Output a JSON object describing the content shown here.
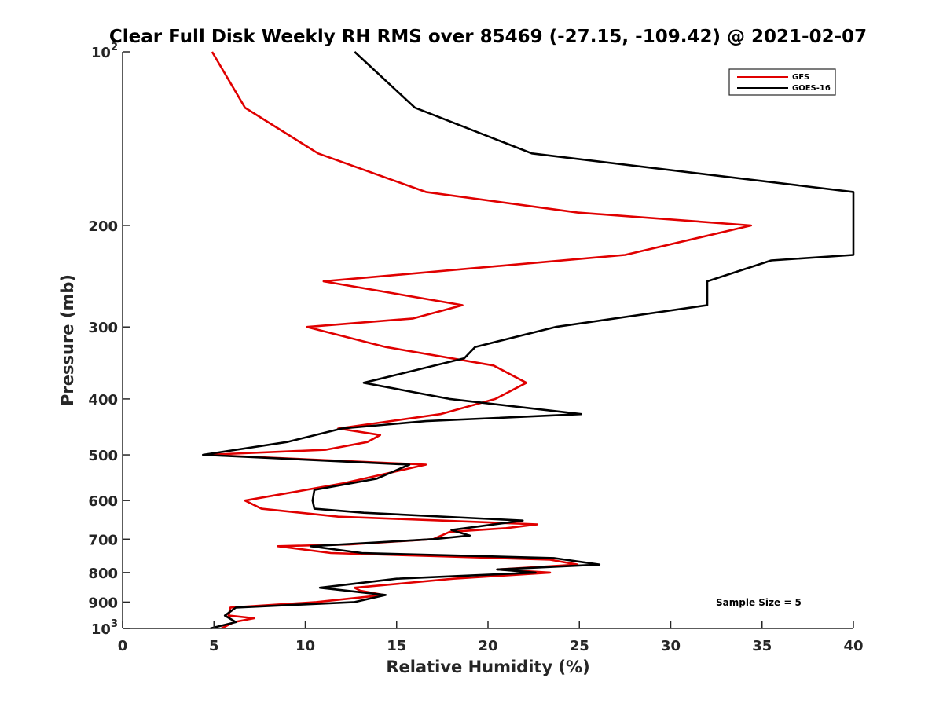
{
  "chart_data": {
    "type": "line",
    "title": "Clear Full Disk Weekly RH RMS over 85469 (-27.15, -109.42) @ 2021-02-07",
    "xlabel": "Relative Humidity (%)",
    "ylabel": "Pressure (mb)",
    "xlim": [
      0,
      40
    ],
    "ylim": [
      100,
      1000
    ],
    "y_scale": "log",
    "y_reversed": true,
    "grid": false,
    "legend_position": "top-right",
    "x_ticks": [
      "0",
      "5",
      "10",
      "15",
      "20",
      "25",
      "30",
      "35",
      "40"
    ],
    "y_ticks": [
      {
        "value": 100,
        "base": "10",
        "exp": "2"
      },
      {
        "value": 200,
        "label": "200"
      },
      {
        "value": 300,
        "label": "300"
      },
      {
        "value": 400,
        "label": "400"
      },
      {
        "value": 500,
        "label": "500"
      },
      {
        "value": 600,
        "label": "600"
      },
      {
        "value": 700,
        "label": "700"
      },
      {
        "value": 800,
        "label": "800"
      },
      {
        "value": 900,
        "label": "900"
      },
      {
        "value": 1000,
        "base": "10",
        "exp": "3"
      }
    ],
    "annotation": "Sample Size = 5",
    "series": [
      {
        "name": "GFS",
        "color": "#e00000",
        "points": [
          [
            4.9,
            100
          ],
          [
            6.7,
            125
          ],
          [
            10.7,
            150
          ],
          [
            16.6,
            175
          ],
          [
            24.9,
            190
          ],
          [
            34.4,
            200
          ],
          [
            27.5,
            225
          ],
          [
            11.0,
            250
          ],
          [
            18.6,
            275
          ],
          [
            15.9,
            290
          ],
          [
            10.1,
            300
          ],
          [
            14.4,
            325
          ],
          [
            20.3,
            350
          ],
          [
            22.1,
            375
          ],
          [
            20.4,
            400
          ],
          [
            17.4,
            425
          ],
          [
            11.8,
            450
          ],
          [
            14.1,
            462
          ],
          [
            13.4,
            475
          ],
          [
            11.1,
            490
          ],
          [
            4.6,
            500
          ],
          [
            16.6,
            520
          ],
          [
            12.1,
            560
          ],
          [
            6.7,
            600
          ],
          [
            7.6,
            620
          ],
          [
            11.8,
            640
          ],
          [
            17.5,
            650
          ],
          [
            22.7,
            660
          ],
          [
            21.0,
            670
          ],
          [
            17.9,
            680
          ],
          [
            17.0,
            700
          ],
          [
            12.4,
            715
          ],
          [
            8.5,
            720
          ],
          [
            11.4,
            740
          ],
          [
            17.7,
            750
          ],
          [
            23.4,
            760
          ],
          [
            24.9,
            775
          ],
          [
            20.5,
            790
          ],
          [
            23.4,
            800
          ],
          [
            18.1,
            820
          ],
          [
            12.7,
            850
          ],
          [
            13.0,
            860
          ],
          [
            14.3,
            875
          ],
          [
            10.6,
            900
          ],
          [
            5.9,
            920
          ],
          [
            5.8,
            950
          ],
          [
            7.2,
            960
          ],
          [
            6.1,
            975
          ],
          [
            5.4,
            1000
          ]
        ]
      },
      {
        "name": "GOES-16",
        "color": "#000000",
        "points": [
          [
            12.7,
            100
          ],
          [
            16.0,
            125
          ],
          [
            22.4,
            150
          ],
          [
            40.0,
            175
          ],
          [
            40.0,
            225
          ],
          [
            35.5,
            230
          ],
          [
            32.0,
            250
          ],
          [
            32.0,
            275
          ],
          [
            23.7,
            300
          ],
          [
            19.3,
            325
          ],
          [
            18.7,
            340
          ],
          [
            13.2,
            375
          ],
          [
            17.9,
            400
          ],
          [
            25.1,
            425
          ],
          [
            16.6,
            437
          ],
          [
            12.0,
            450
          ],
          [
            9.0,
            475
          ],
          [
            4.4,
            500
          ],
          [
            15.7,
            520
          ],
          [
            13.9,
            550
          ],
          [
            10.5,
            575
          ],
          [
            10.4,
            600
          ],
          [
            10.5,
            620
          ],
          [
            13.2,
            630
          ],
          [
            21.9,
            650
          ],
          [
            18.0,
            675
          ],
          [
            19.0,
            690
          ],
          [
            17.0,
            700
          ],
          [
            10.3,
            720
          ],
          [
            13.1,
            740
          ],
          [
            23.6,
            755
          ],
          [
            26.1,
            775
          ],
          [
            20.5,
            790
          ],
          [
            22.6,
            800
          ],
          [
            15.0,
            820
          ],
          [
            10.8,
            850
          ],
          [
            14.4,
            875
          ],
          [
            12.7,
            900
          ],
          [
            6.2,
            920
          ],
          [
            5.6,
            950
          ],
          [
            6.2,
            975
          ],
          [
            4.8,
            1000
          ]
        ]
      }
    ]
  }
}
